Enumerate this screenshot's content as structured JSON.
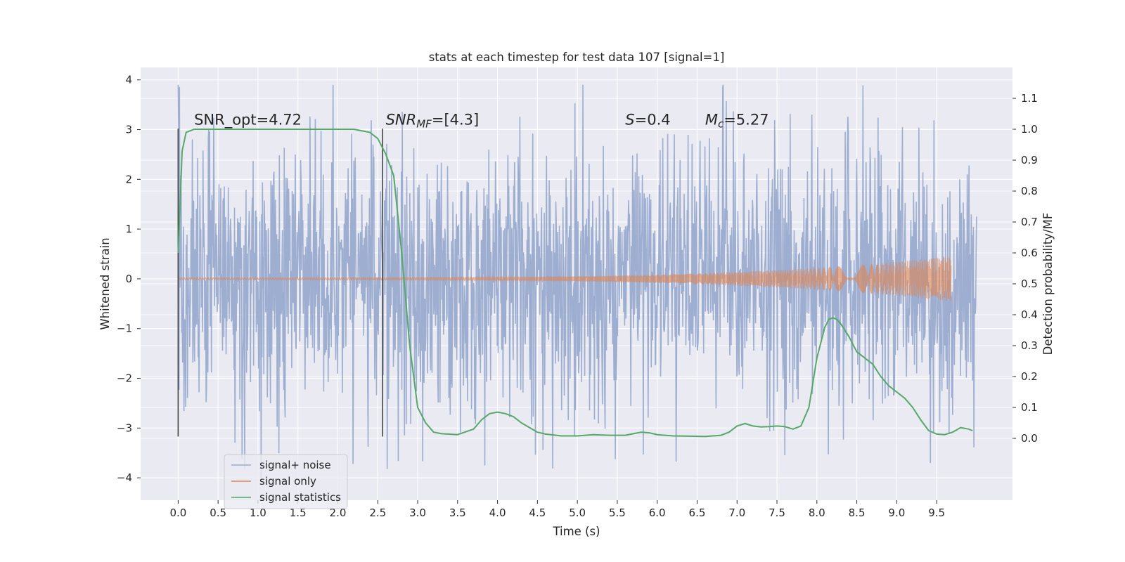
{
  "chart_data": {
    "type": "line",
    "title": "stats at each timestep for test data 107 [signal=1]",
    "xlabel": "Time (s)",
    "ylabel": "Whitened strain",
    "y2label": "Detection probability/MF",
    "xlim": [
      -0.47,
      10.45
    ],
    "ylim": [
      -4.45,
      4.25
    ],
    "y2lim": [
      -0.2,
      1.2
    ],
    "x_ticks": [
      0.0,
      0.5,
      1.0,
      1.5,
      2.0,
      2.5,
      3.0,
      3.5,
      4.0,
      4.5,
      5.0,
      5.5,
      6.0,
      6.5,
      7.0,
      7.5,
      8.0,
      8.5,
      9.0,
      9.5
    ],
    "x_tick_labels": [
      "0.0",
      "0.5",
      "1.0",
      "1.5",
      "2.0",
      "2.5",
      "3.0",
      "3.5",
      "4.0",
      "4.5",
      "5.0",
      "5.5",
      "6.0",
      "6.5",
      "7.0",
      "7.5",
      "8.0",
      "8.5",
      "9.0",
      "9.5"
    ],
    "y_ticks": [
      -4,
      -3,
      -2,
      -1,
      0,
      1,
      2,
      3,
      4
    ],
    "y_tick_labels": [
      "−4",
      "−3",
      "−2",
      "−1",
      "0",
      "1",
      "2",
      "3",
      "4"
    ],
    "y2_ticks": [
      0.0,
      0.1,
      0.2,
      0.3,
      0.4,
      0.5,
      0.6,
      0.7,
      0.8,
      0.9,
      1.0,
      1.1
    ],
    "y2_tick_labels": [
      "0.0",
      "0.1",
      "0.2",
      "0.3",
      "0.4",
      "0.5",
      "0.6",
      "0.7",
      "0.8",
      "0.9",
      "1.0",
      "1.1"
    ],
    "grid": true,
    "legend_position": "lower-left",
    "colors": {
      "background": "#eaeaf2",
      "grid": "#ffffff",
      "signal_noise": "#99abcf",
      "signal_only": "#dd8452",
      "signal_statistics": "#55a868",
      "markers": "#444444"
    },
    "annotations": [
      {
        "text": "SNR_opt=4.72",
        "x": 0.2,
        "y": 3.1
      },
      {
        "text_main": "SNR",
        "text_sub": "MF",
        "text_rest": "=[4.3]",
        "x": 2.6,
        "y": 3.1
      },
      {
        "text_main": "S",
        "text_rest": "=0.4",
        "x": 5.6,
        "y": 3.1
      },
      {
        "text_main": "M",
        "text_sub": "c",
        "text_rest": "=5.27",
        "x": 6.6,
        "y": 3.1
      }
    ],
    "vertical_markers": [
      {
        "x": 0.0,
        "y_from": -3.17,
        "y_to": 3.02
      },
      {
        "x": 2.56,
        "y_from": -3.17,
        "y_to": 3.02
      }
    ],
    "series": [
      {
        "name": "signal+ noise",
        "axis": "left",
        "style": "dense-noise",
        "x_range": [
          0.0,
          10.0
        ],
        "typical_amplitude": 1.4,
        "min": -4.0,
        "max": 3.9
      },
      {
        "name": "signal only",
        "axis": "left",
        "style": "chirp",
        "x_range": [
          0.0,
          9.68
        ],
        "amplitude_start": 0.02,
        "amplitude_end": 0.45
      },
      {
        "name": "signal statistics",
        "axis": "right",
        "style": "line",
        "x": [
          0.0,
          0.05,
          0.1,
          0.15,
          0.2,
          0.4,
          0.8,
          1.2,
          1.6,
          2.0,
          2.2,
          2.4,
          2.5,
          2.6,
          2.7,
          2.8,
          2.9,
          3.0,
          3.1,
          3.2,
          3.3,
          3.5,
          3.7,
          3.8,
          3.9,
          4.0,
          4.1,
          4.2,
          4.3,
          4.4,
          4.5,
          4.6,
          4.8,
          5.0,
          5.1,
          5.2,
          5.4,
          5.6,
          5.7,
          5.8,
          5.9,
          6.0,
          6.2,
          6.4,
          6.6,
          6.8,
          6.9,
          7.0,
          7.1,
          7.2,
          7.3,
          7.4,
          7.5,
          7.6,
          7.7,
          7.8,
          7.9,
          8.0,
          8.1,
          8.15,
          8.2,
          8.25,
          8.3,
          8.4,
          8.5,
          8.6,
          8.7,
          8.8,
          8.9,
          9.0,
          9.1,
          9.2,
          9.3,
          9.4,
          9.5,
          9.6,
          9.7,
          9.8,
          9.9,
          9.95
        ],
        "y": [
          0.6,
          0.93,
          0.99,
          0.995,
          1.0,
          1.0,
          1.0,
          1.0,
          1.0,
          1.0,
          1.0,
          0.99,
          0.97,
          0.92,
          0.85,
          0.6,
          0.3,
          0.1,
          0.05,
          0.02,
          0.015,
          0.012,
          0.03,
          0.06,
          0.08,
          0.085,
          0.08,
          0.07,
          0.05,
          0.035,
          0.02,
          0.014,
          0.008,
          0.008,
          0.01,
          0.012,
          0.01,
          0.01,
          0.015,
          0.02,
          0.018,
          0.012,
          0.008,
          0.007,
          0.006,
          0.01,
          0.02,
          0.04,
          0.048,
          0.04,
          0.037,
          0.038,
          0.04,
          0.038,
          0.03,
          0.04,
          0.1,
          0.26,
          0.36,
          0.385,
          0.39,
          0.385,
          0.37,
          0.33,
          0.28,
          0.26,
          0.24,
          0.2,
          0.17,
          0.15,
          0.13,
          0.1,
          0.06,
          0.025,
          0.014,
          0.012,
          0.02,
          0.035,
          0.03,
          0.025
        ]
      }
    ]
  }
}
